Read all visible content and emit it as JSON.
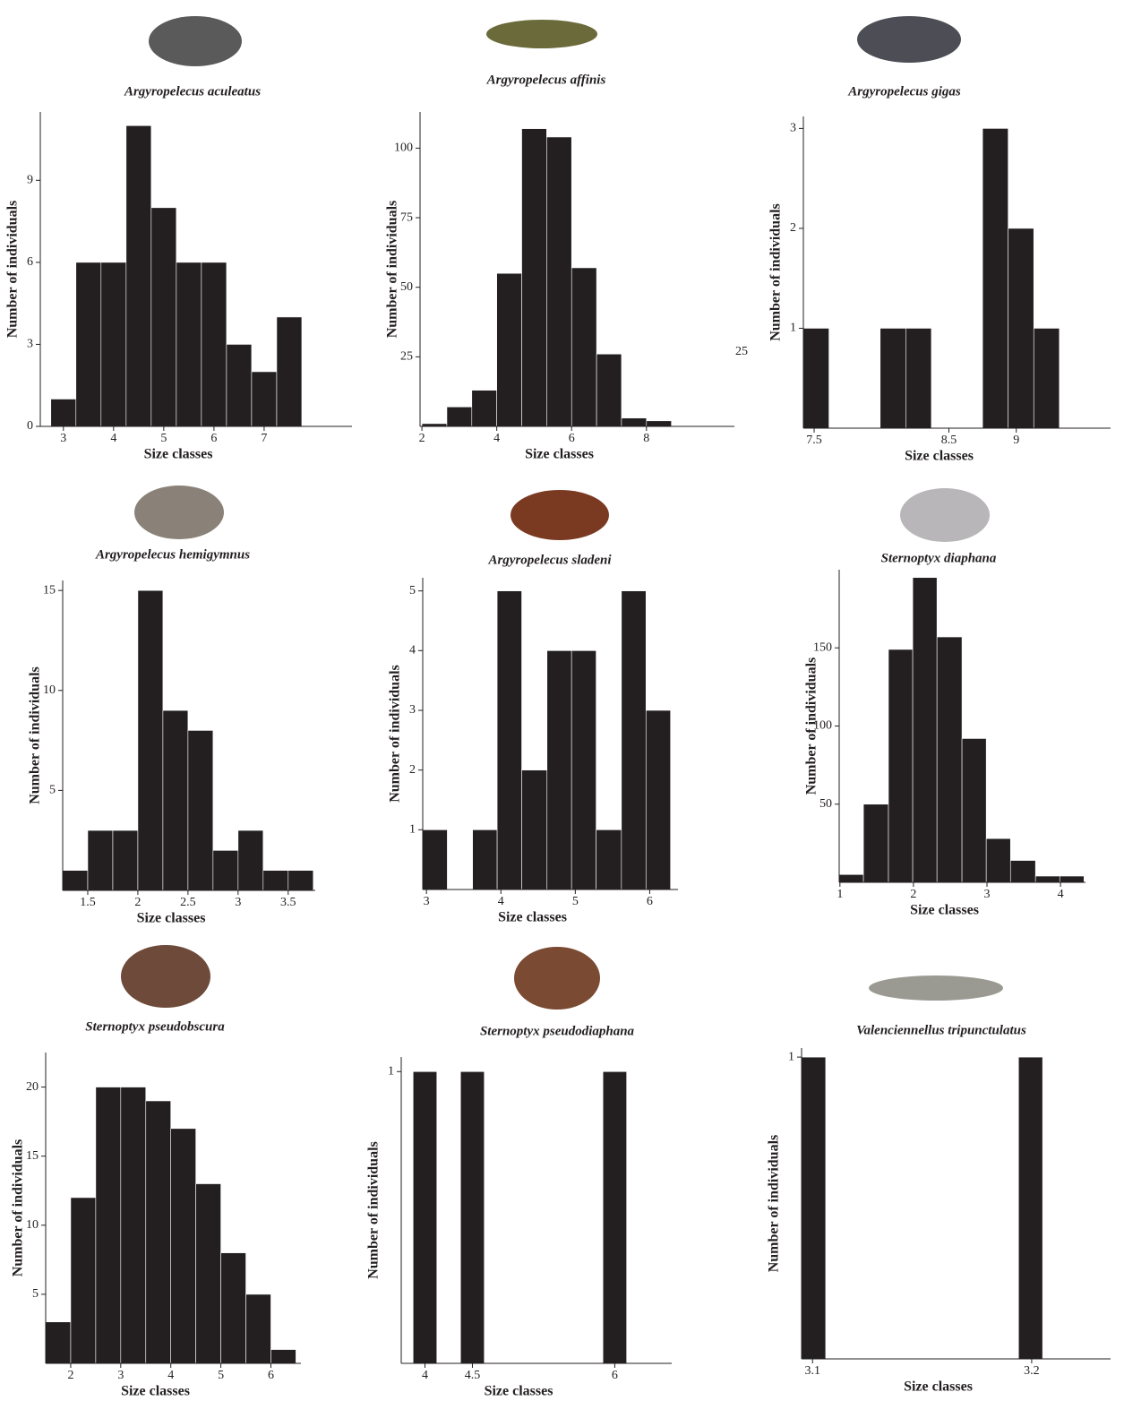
{
  "chart_data": [
    {
      "type": "histogram",
      "title": "Argyropelecus aculeatus",
      "xlabel": "Size classes",
      "ylabel": "Number of individuals",
      "color": "#231f20",
      "bins": [
        2.75,
        3.25,
        3.75,
        4.25,
        4.75,
        5.25,
        5.75,
        6.25,
        6.75,
        7.25,
        7.75
      ],
      "values": [
        1,
        6,
        6,
        11,
        8,
        6,
        6,
        3,
        2,
        4
      ],
      "xlim": [
        2.54,
        8.75
      ],
      "ylim": [
        0,
        11.5
      ],
      "xticks": [
        3,
        4,
        5,
        6,
        7
      ],
      "yticks": [
        0,
        3,
        6,
        9
      ]
    },
    {
      "type": "histogram",
      "title": "Argyropelecus affinis",
      "xlabel": "Size classes",
      "ylabel": "Number of individuals",
      "color": "#231f20",
      "annotation": "25",
      "bins": [
        2,
        2.667,
        3.333,
        4,
        4.667,
        5.333,
        6,
        6.667,
        7.333,
        8,
        8.667
      ],
      "values": [
        1,
        7,
        13,
        55,
        107,
        104,
        57,
        26,
        3,
        2
      ],
      "xlim": [
        1.95,
        10.35
      ],
      "ylim": [
        0,
        113
      ],
      "xticks": [
        2,
        4,
        6,
        8
      ],
      "yticks": [
        25,
        50,
        75,
        100
      ]
    },
    {
      "type": "histogram",
      "title": "Argyropelecus gigas",
      "xlabel": "Size classes",
      "ylabel": "Number of individuals",
      "color": "#231f20",
      "bins": [
        7.42,
        7.61,
        7.8,
        7.99,
        8.18,
        8.37,
        8.56,
        8.75,
        8.94,
        9.13,
        9.32
      ],
      "values": [
        1,
        0,
        0,
        1,
        1,
        0,
        0,
        3,
        2,
        1
      ],
      "xlim": [
        7.42,
        9.7
      ],
      "ylim": [
        0,
        3.12
      ],
      "xticks": [
        7.5,
        8.5,
        9
      ],
      "yticks": [
        1,
        2,
        3
      ]
    },
    {
      "type": "histogram",
      "title": "Argyropelecus hemigymnus",
      "xlabel": "Size classes",
      "ylabel": "Number of individuals",
      "color": "#231f20",
      "bins": [
        1.25,
        1.5,
        1.75,
        2,
        2.25,
        2.5,
        2.75,
        3,
        3.25,
        3.5,
        3.75
      ],
      "values": [
        1,
        3,
        3,
        15,
        9,
        8,
        2,
        3,
        1,
        1
      ],
      "xlim": [
        1.25,
        3.77
      ],
      "ylim": [
        0,
        15.5
      ],
      "xticks": [
        1.5,
        2,
        2.5,
        3,
        3.5
      ],
      "yticks": [
        5,
        10,
        15
      ]
    },
    {
      "type": "histogram",
      "title": "Argyropelecus sladeni",
      "xlabel": "Size classes",
      "ylabel": "Number of individuals",
      "color": "#231f20",
      "bins": [
        2.95,
        3.28,
        3.62,
        3.95,
        4.28,
        4.62,
        4.95,
        5.28,
        5.62,
        5.95,
        6.28
      ],
      "values": [
        1,
        0,
        1,
        5,
        2,
        4,
        4,
        1,
        5,
        3
      ],
      "xlim": [
        2.95,
        6.38
      ],
      "ylim": [
        0,
        5.22
      ],
      "xticks": [
        3,
        4,
        5,
        6
      ],
      "yticks": [
        1,
        2,
        3,
        4,
        5
      ]
    },
    {
      "type": "histogram",
      "title": "Sternoptyx diaphana",
      "xlabel": "Size classes",
      "ylabel": "Number of individuals",
      "color": "#231f20",
      "bins": [
        0.99,
        1.32,
        1.66,
        1.99,
        2.32,
        2.66,
        2.99,
        3.32,
        3.66,
        3.99,
        4.32
      ],
      "values": [
        5,
        50,
        149,
        195,
        157,
        92,
        28,
        14,
        4,
        4
      ],
      "xlim": [
        0.99,
        4.34
      ],
      "ylim": [
        0,
        200
      ],
      "xticks": [
        1,
        2,
        3,
        4
      ],
      "yticks": [
        50,
        100,
        150
      ]
    },
    {
      "type": "histogram",
      "title": "Sternoptyx pseudobscura",
      "xlabel": "Size classes",
      "ylabel": "Number of individuals",
      "color": "#231f20",
      "bins": [
        1.5,
        2,
        2.5,
        3,
        3.5,
        4,
        4.5,
        5,
        5.5,
        6,
        6.5
      ],
      "values": [
        3,
        12,
        20,
        20,
        19,
        17,
        13,
        8,
        5,
        1
      ],
      "xlim": [
        1.5,
        6.6
      ],
      "ylim": [
        0,
        22.5
      ],
      "xticks": [
        2,
        3,
        4,
        5,
        6
      ],
      "yticks": [
        5,
        10,
        15,
        20
      ]
    },
    {
      "type": "histogram",
      "title": "Sternoptyx pseudodiaphana",
      "xlabel": "Size classes",
      "ylabel": "Number of individuals",
      "color": "#231f20",
      "bins": [
        3.875,
        4.125,
        4.375,
        4.625,
        4.875,
        5.125,
        5.375,
        5.625,
        5.875,
        6.125
      ],
      "values": [
        1,
        0,
        1,
        0,
        0,
        0,
        0,
        0,
        1
      ],
      "xlim": [
        3.75,
        6.6
      ],
      "ylim": [
        0,
        1.05
      ],
      "xticks": [
        4,
        4.5,
        6
      ],
      "yticks": [
        1
      ]
    },
    {
      "type": "histogram",
      "title": "Valenciennellus tripunctulatus",
      "xlabel": "Size classes",
      "ylabel": "Number of individuals",
      "color": "#231f20",
      "bins": [
        3.095,
        3.106,
        3.117,
        3.128,
        3.139,
        3.15,
        3.161,
        3.172,
        3.183,
        3.194,
        3.205
      ],
      "values": [
        1,
        0,
        0,
        0,
        0,
        0,
        0,
        0,
        0,
        1
      ],
      "xlim": [
        3.095,
        3.236
      ],
      "ylim": [
        0,
        1.03
      ],
      "xticks": [
        3.1,
        3.2
      ],
      "yticks": [
        1
      ]
    }
  ]
}
